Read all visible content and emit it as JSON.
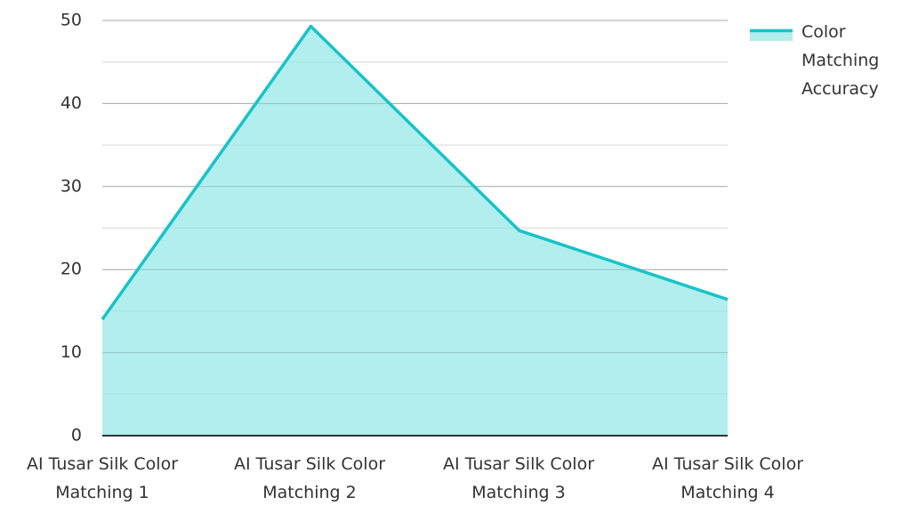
{
  "chart_data": {
    "type": "area",
    "categories": [
      "AI Tusar Silk Color Matching 1",
      "AI Tusar Silk Color Matching 2",
      "AI Tusar Silk Color Matching 3",
      "AI Tusar Silk Color Matching 4"
    ],
    "category_lines": [
      [
        "AI Tusar Silk Color",
        "Matching 1"
      ],
      [
        "AI Tusar Silk Color",
        "Matching 2"
      ],
      [
        "AI Tusar Silk Color",
        "Matching 3"
      ],
      [
        "AI Tusar Silk Color",
        "Matching 4"
      ]
    ],
    "series": [
      {
        "name": "Color Matching Accuracy",
        "name_lines": [
          "Color",
          "Matching",
          "Accuracy"
        ],
        "values": [
          14,
          49.3,
          24.7,
          16.4
        ],
        "line_color": "#17c3c8",
        "fill_color": "#b2eeee"
      }
    ],
    "y_ticks": [
      "0",
      "10",
      "20",
      "30",
      "40",
      "50"
    ],
    "ylim": [
      0,
      50
    ],
    "grid": true,
    "legend": "top-right"
  }
}
